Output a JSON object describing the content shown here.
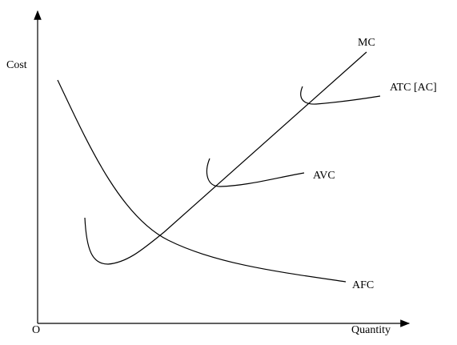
{
  "axes": {
    "y_label": "Cost",
    "x_label": "Quantity",
    "origin": "O"
  },
  "curves": [
    {
      "label": "MC"
    },
    {
      "label": "ATC [AC]"
    },
    {
      "label": "AVC"
    },
    {
      "label": "AFC"
    }
  ]
}
